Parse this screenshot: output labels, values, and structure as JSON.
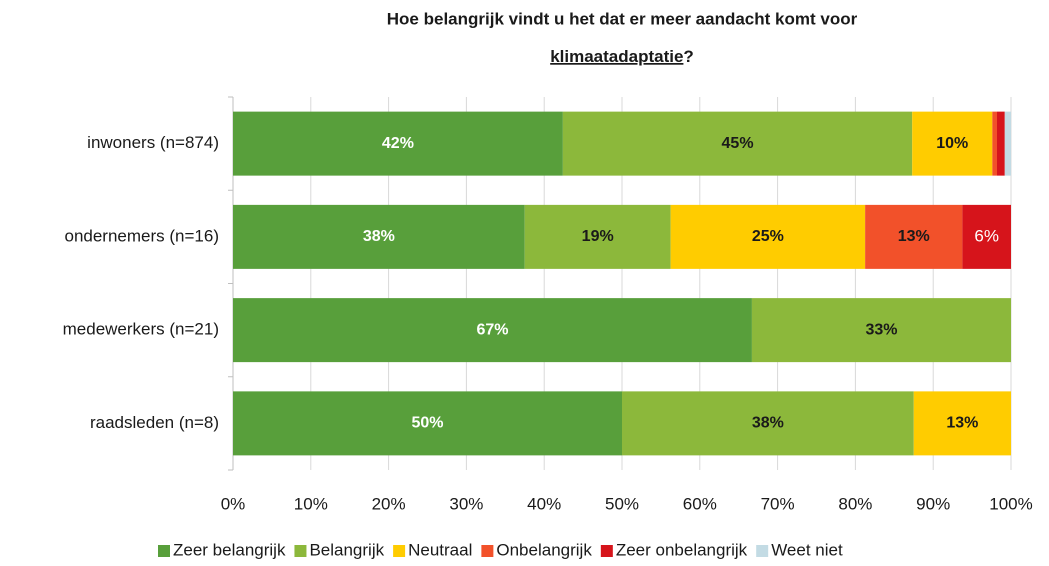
{
  "chart_data": {
    "type": "stacked-barh",
    "title": [
      "Hoe belangrijk vindt u het dat er meer aandacht komt voor",
      "klimaatadaptatie",
      "?"
    ],
    "categories": [
      "inwoners (n=874)",
      "ondernemers (n=16)",
      "medewerkers (n=21)",
      "raadsleden (n=8)"
    ],
    "series": [
      {
        "name": "Zeer belangrijk",
        "color": "#589f3b",
        "values": [
          42.4,
          37.5,
          66.7,
          50
        ],
        "value_labels": [
          "42%",
          "38%",
          "67%",
          "50%"
        ]
      },
      {
        "name": "Belangrijk",
        "color": "#8cb83b",
        "values": [
          44.9,
          18.75,
          33.3,
          37.5
        ],
        "value_labels": [
          "45%",
          "19%",
          "33%",
          "38%"
        ]
      },
      {
        "name": "Neutraal",
        "color": "#ffcc00",
        "values": [
          10.3,
          25,
          null,
          12.5
        ],
        "value_labels": [
          "10%",
          "25%",
          null,
          "13%"
        ]
      },
      {
        "name": "Onbelangrijk",
        "color": "#f2512a",
        "values": [
          0.6,
          12.5,
          null,
          null
        ],
        "value_labels": [
          null,
          "13%",
          null,
          null
        ]
      },
      {
        "name": "Zeer onbelangrijk",
        "color": "#d6141b",
        "values": [
          1.0,
          6.25,
          null,
          null
        ],
        "value_labels": [
          null,
          "6%",
          null,
          null
        ]
      },
      {
        "name": "Weet niet",
        "color": "#c3dbe4",
        "values": [
          0.8,
          null,
          null,
          null
        ],
        "value_labels": [
          null,
          null,
          null,
          null
        ]
      }
    ],
    "xlim": [
      0,
      100
    ],
    "xticks": [
      {
        "value": 0,
        "label": "0%"
      },
      {
        "value": 10,
        "label": "10%"
      },
      {
        "value": 20,
        "label": "20%"
      },
      {
        "value": 30,
        "label": "30%"
      },
      {
        "value": 40,
        "label": "40%"
      },
      {
        "value": 50,
        "label": "50%"
      },
      {
        "value": 60,
        "label": "60%"
      },
      {
        "value": 70,
        "label": "70%"
      },
      {
        "value": 80,
        "label": "80%"
      },
      {
        "value": 90,
        "label": "90%"
      },
      {
        "value": 100,
        "label": "100%"
      }
    ],
    "grid": true,
    "legend": "bottom"
  }
}
